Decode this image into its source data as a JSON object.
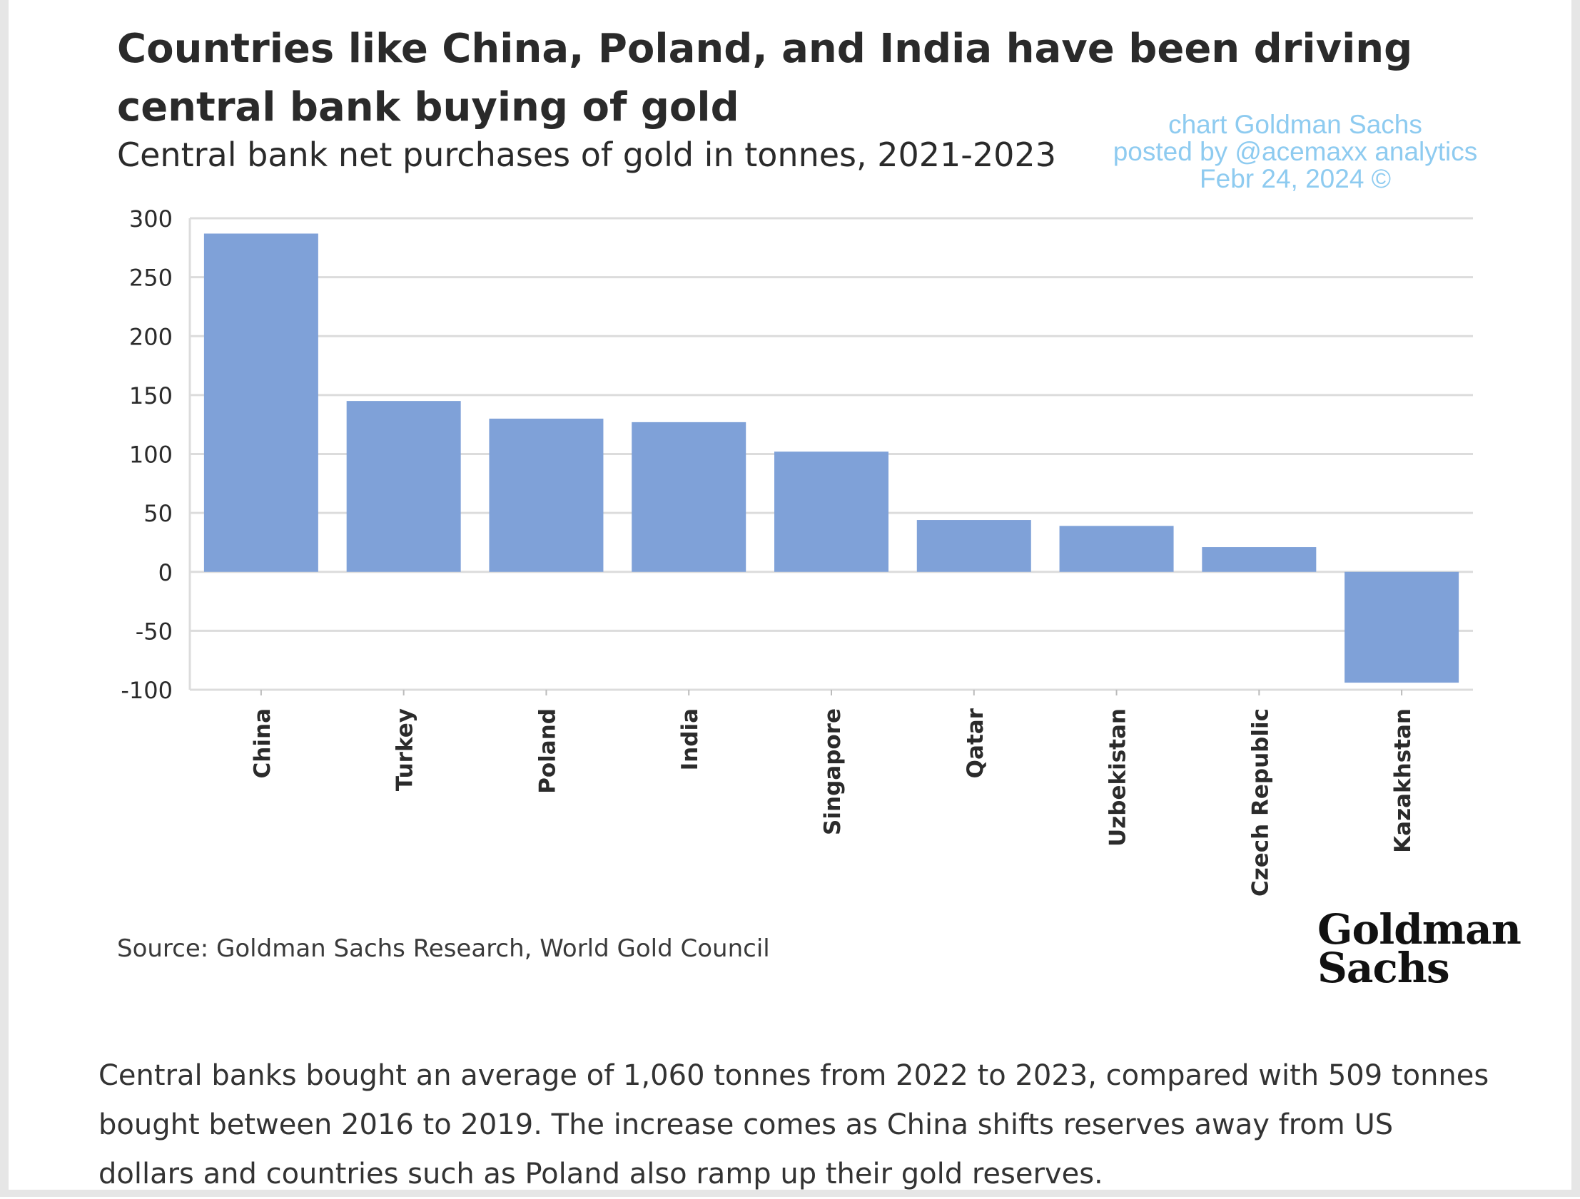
{
  "title": "Countries like China, Poland, and India have been driving central bank buying of gold",
  "subtitle": "Central bank net purchases of gold in tonnes, 2021-2023",
  "watermark": {
    "line1": "chart Goldman Sachs",
    "line2": "posted by @acemaxx analytics",
    "line3": "Febr 24, 2024 ©"
  },
  "source": "Source: Goldman Sachs Research, World Gold Council",
  "logo": {
    "line1": "Goldman",
    "line2": "Sachs"
  },
  "description": "Central banks bought an average of 1,060 tonnes from 2022 to 2023, compared with 509 tonnes bought between 2016 to 2019. The increase comes as China shifts reserves away from US dollars and countries such as Poland also ramp up their gold reserves.",
  "colors": {
    "bar": "#7fa1d8",
    "grid": "#dcdcdc",
    "axis_text": "#2b2b2b",
    "watermark": "#8ecbf0"
  },
  "chart_data": {
    "type": "bar",
    "title": "Countries like China, Poland, and India have been driving central bank buying of gold",
    "subtitle": "Central bank net purchases of gold in tonnes, 2021-2023",
    "xlabel": "",
    "ylabel": "",
    "categories": [
      "China",
      "Turkey",
      "Poland",
      "India",
      "Singapore",
      "Qatar",
      "Uzbekistan",
      "Czech Republic",
      "Kazakhstan"
    ],
    "values": [
      287,
      145,
      130,
      127,
      102,
      44,
      39,
      21,
      -94
    ],
    "ylim": [
      -100,
      300
    ],
    "yticks": [
      "300",
      "250",
      "200",
      "150",
      "100",
      "50",
      "0",
      "-50",
      "-100"
    ],
    "grid": true,
    "legend": "none"
  }
}
